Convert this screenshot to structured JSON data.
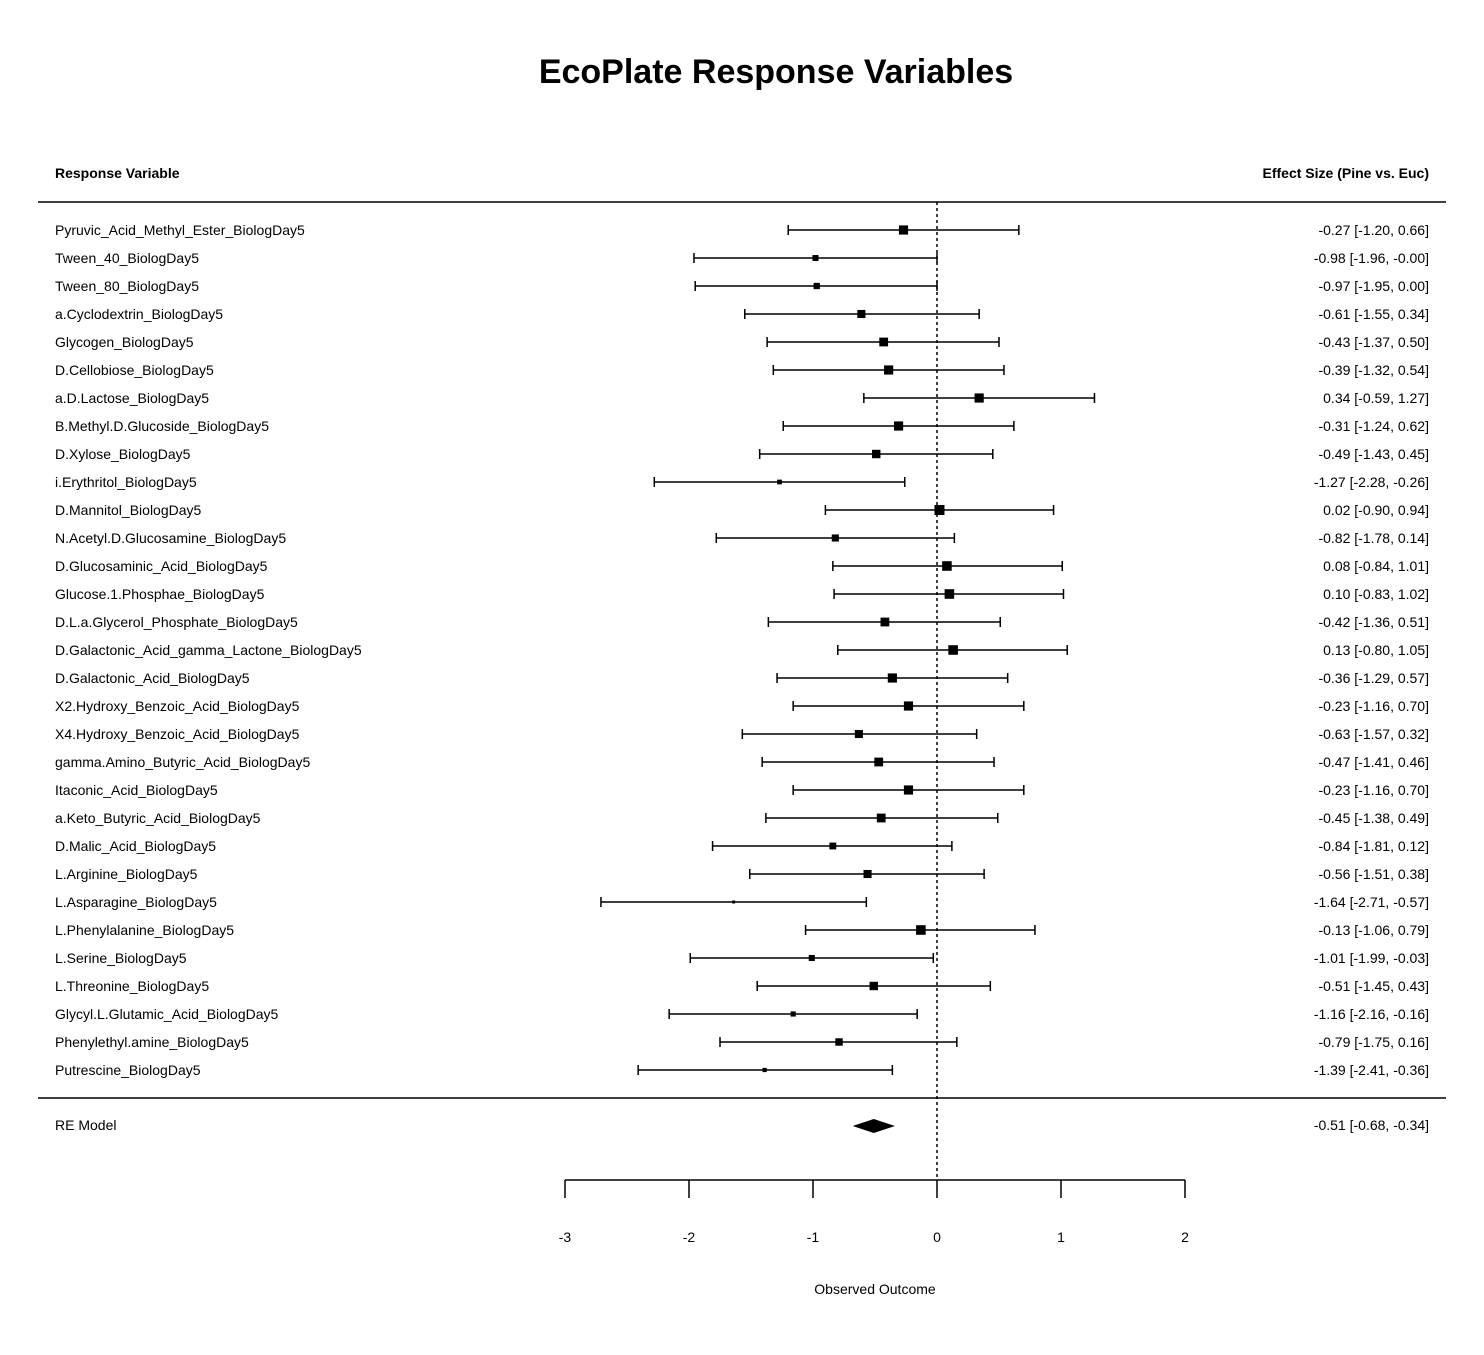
{
  "chart_data": {
    "type": "forest",
    "title": "EcoPlate Response Variables",
    "left_header": "Response Variable",
    "right_header": "Effect Size (Pine vs. Euc)",
    "xlabel": "Observed Outcome",
    "xlim": [
      -3,
      2
    ],
    "x_ticks": [
      "-3",
      "-2",
      "-1",
      "0",
      "1",
      "2"
    ],
    "reference_line": 0,
    "rows": [
      {
        "label": "Pyruvic_Acid_Methyl_Ester_BiologDay5",
        "est": -0.27,
        "lo": -1.2,
        "hi": 0.66,
        "text": "-0.27 [-1.20,  0.66]"
      },
      {
        "label": "Tween_40_BiologDay5",
        "est": -0.98,
        "lo": -1.96,
        "hi": -0.0,
        "text": "-0.98 [-1.96, -0.00]"
      },
      {
        "label": "Tween_80_BiologDay5",
        "est": -0.97,
        "lo": -1.95,
        "hi": 0.0,
        "text": "-0.97 [-1.95,  0.00]"
      },
      {
        "label": "a.Cyclodextrin_BiologDay5",
        "est": -0.61,
        "lo": -1.55,
        "hi": 0.34,
        "text": "-0.61 [-1.55,  0.34]"
      },
      {
        "label": "Glycogen_BiologDay5",
        "est": -0.43,
        "lo": -1.37,
        "hi": 0.5,
        "text": "-0.43 [-1.37,  0.50]"
      },
      {
        "label": "D.Cellobiose_BiologDay5",
        "est": -0.39,
        "lo": -1.32,
        "hi": 0.54,
        "text": "-0.39 [-1.32,  0.54]"
      },
      {
        "label": "a.D.Lactose_BiologDay5",
        "est": 0.34,
        "lo": -0.59,
        "hi": 1.27,
        "text": "0.34 [-0.59,  1.27]"
      },
      {
        "label": "B.Methyl.D.Glucoside_BiologDay5",
        "est": -0.31,
        "lo": -1.24,
        "hi": 0.62,
        "text": "-0.31 [-1.24,  0.62]"
      },
      {
        "label": "D.Xylose_BiologDay5",
        "est": -0.49,
        "lo": -1.43,
        "hi": 0.45,
        "text": "-0.49 [-1.43,  0.45]"
      },
      {
        "label": "i.Erythritol_BiologDay5",
        "est": -1.27,
        "lo": -2.28,
        "hi": -0.26,
        "text": "-1.27 [-2.28, -0.26]"
      },
      {
        "label": "D.Mannitol_BiologDay5",
        "est": 0.02,
        "lo": -0.9,
        "hi": 0.94,
        "text": "0.02 [-0.90,  0.94]"
      },
      {
        "label": "N.Acetyl.D.Glucosamine_BiologDay5",
        "est": -0.82,
        "lo": -1.78,
        "hi": 0.14,
        "text": "-0.82 [-1.78,  0.14]"
      },
      {
        "label": "D.Glucosaminic_Acid_BiologDay5",
        "est": 0.08,
        "lo": -0.84,
        "hi": 1.01,
        "text": "0.08 [-0.84,  1.01]"
      },
      {
        "label": "Glucose.1.Phosphae_BiologDay5",
        "est": 0.1,
        "lo": -0.83,
        "hi": 1.02,
        "text": "0.10 [-0.83,  1.02]"
      },
      {
        "label": "D.L.a.Glycerol_Phosphate_BiologDay5",
        "est": -0.42,
        "lo": -1.36,
        "hi": 0.51,
        "text": "-0.42 [-1.36,  0.51]"
      },
      {
        "label": "D.Galactonic_Acid_gamma_Lactone_BiologDay5",
        "est": 0.13,
        "lo": -0.8,
        "hi": 1.05,
        "text": "0.13 [-0.80,  1.05]"
      },
      {
        "label": "D.Galactonic_Acid_BiologDay5",
        "est": -0.36,
        "lo": -1.29,
        "hi": 0.57,
        "text": "-0.36 [-1.29,  0.57]"
      },
      {
        "label": "X2.Hydroxy_Benzoic_Acid_BiologDay5",
        "est": -0.23,
        "lo": -1.16,
        "hi": 0.7,
        "text": "-0.23 [-1.16,  0.70]"
      },
      {
        "label": "X4.Hydroxy_Benzoic_Acid_BiologDay5",
        "est": -0.63,
        "lo": -1.57,
        "hi": 0.32,
        "text": "-0.63 [-1.57,  0.32]"
      },
      {
        "label": "gamma.Amino_Butyric_Acid_BiologDay5",
        "est": -0.47,
        "lo": -1.41,
        "hi": 0.46,
        "text": "-0.47 [-1.41,  0.46]"
      },
      {
        "label": "Itaconic_Acid_BiologDay5",
        "est": -0.23,
        "lo": -1.16,
        "hi": 0.7,
        "text": "-0.23 [-1.16,  0.70]"
      },
      {
        "label": "a.Keto_Butyric_Acid_BiologDay5",
        "est": -0.45,
        "lo": -1.38,
        "hi": 0.49,
        "text": "-0.45 [-1.38,  0.49]"
      },
      {
        "label": "D.Malic_Acid_BiologDay5",
        "est": -0.84,
        "lo": -1.81,
        "hi": 0.12,
        "text": "-0.84 [-1.81,  0.12]"
      },
      {
        "label": "L.Arginine_BiologDay5",
        "est": -0.56,
        "lo": -1.51,
        "hi": 0.38,
        "text": "-0.56 [-1.51,  0.38]"
      },
      {
        "label": "L.Asparagine_BiologDay5",
        "est": -1.64,
        "lo": -2.71,
        "hi": -0.57,
        "text": "-1.64 [-2.71, -0.57]"
      },
      {
        "label": "L.Phenylalanine_BiologDay5",
        "est": -0.13,
        "lo": -1.06,
        "hi": 0.79,
        "text": "-0.13 [-1.06,  0.79]"
      },
      {
        "label": "L.Serine_BiologDay5",
        "est": -1.01,
        "lo": -1.99,
        "hi": -0.03,
        "text": "-1.01 [-1.99, -0.03]"
      },
      {
        "label": "L.Threonine_BiologDay5",
        "est": -0.51,
        "lo": -1.45,
        "hi": 0.43,
        "text": "-0.51 [-1.45,  0.43]"
      },
      {
        "label": "Glycyl.L.Glutamic_Acid_BiologDay5",
        "est": -1.16,
        "lo": -2.16,
        "hi": -0.16,
        "text": "-1.16 [-2.16, -0.16]"
      },
      {
        "label": "Phenylethyl.amine_BiologDay5",
        "est": -0.79,
        "lo": -1.75,
        "hi": 0.16,
        "text": "-0.79 [-1.75,  0.16]"
      },
      {
        "label": "Putrescine_BiologDay5",
        "est": -1.39,
        "lo": -2.41,
        "hi": -0.36,
        "text": "-1.39 [-2.41, -0.36]"
      }
    ],
    "summary": {
      "label": "RE Model",
      "est": -0.51,
      "lo": -0.68,
      "hi": -0.34,
      "text": "-0.51 [-0.68, -0.34]"
    }
  }
}
